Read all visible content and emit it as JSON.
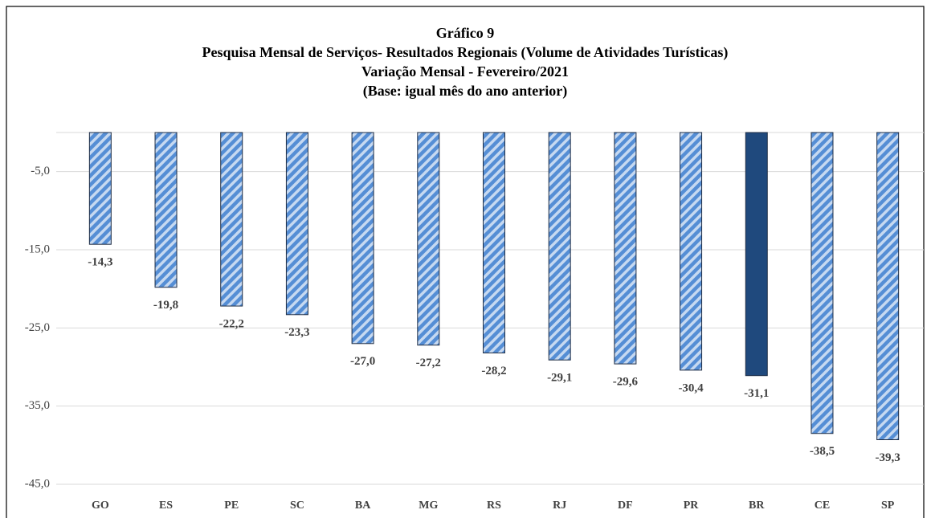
{
  "chart_data": {
    "type": "bar",
    "title": [
      "Gráfico 9",
      "Pesquisa Mensal de Serviços- Resultados Regionais (Volume de Atividades Turísticas)",
      "Variação Mensal - Fevereiro/2021",
      "(Base: igual mês do ano anterior)"
    ],
    "categories": [
      "GO",
      "ES",
      "PE",
      "SC",
      "BA",
      "MG",
      "RS",
      "RJ",
      "DF",
      "PR",
      "BR",
      "CE",
      "SP"
    ],
    "values": [
      -14.3,
      -19.8,
      -22.2,
      -23.3,
      -27.0,
      -27.2,
      -28.2,
      -29.1,
      -29.6,
      -30.4,
      -31.1,
      -38.5,
      -39.3
    ],
    "value_labels": [
      "-14,3",
      "-19,8",
      "-22,2",
      "-23,3",
      "-27,0",
      "-27,2",
      "-28,2",
      "-29,1",
      "-29,6",
      "-30,4",
      "-31,1",
      "-38,5",
      "-39,3"
    ],
    "colors": [
      "#558ed5",
      "#558ed5",
      "#558ed5",
      "#558ed5",
      "#558ed5",
      "#558ed5",
      "#558ed5",
      "#558ed5",
      "#558ed5",
      "#558ed5",
      "#1f497d",
      "#558ed5",
      "#558ed5"
    ],
    "hatched": [
      true,
      true,
      true,
      true,
      true,
      true,
      true,
      true,
      true,
      true,
      false,
      true,
      true
    ],
    "ylim": [
      -45,
      0
    ],
    "yticks": [
      {
        "value": -5,
        "label": "-5,0"
      },
      {
        "value": -15,
        "label": "-15,0"
      },
      {
        "value": -25,
        "label": "-25,0"
      },
      {
        "value": -35,
        "label": "-35,0"
      },
      {
        "value": -45,
        "label": "-45,0"
      }
    ],
    "grid": true
  }
}
